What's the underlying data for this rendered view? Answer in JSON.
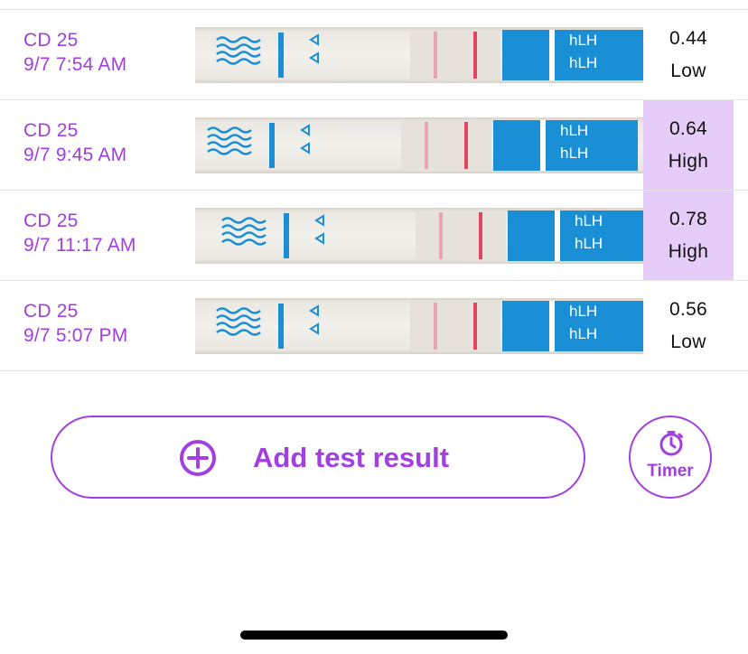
{
  "colors": {
    "accent": "#a23fe0",
    "high_highlight": "#e6ccf8",
    "strip_blue": "#1a8fd6",
    "test_line": "#e2455f"
  },
  "rows": [
    {
      "cycle_day": "CD 25",
      "datetime": "9/7 7:54 AM",
      "reading": "0.44",
      "level": "Low",
      "highlighted": false,
      "strip_label": "hLH",
      "strip_label_2": "hLH"
    },
    {
      "cycle_day": "CD 25",
      "datetime": "9/7 9:45 AM",
      "reading": "0.64",
      "level": "High",
      "highlighted": true,
      "strip_label": "hLH",
      "strip_label_2": "hLH"
    },
    {
      "cycle_day": "CD 25",
      "datetime": "9/7 11:17 AM",
      "reading": "0.78",
      "level": "High",
      "highlighted": true,
      "strip_label": "hLH",
      "strip_label_2": "hLH"
    },
    {
      "cycle_day": "CD 25",
      "datetime": "9/7 5:07 PM",
      "reading": "0.56",
      "level": "Low",
      "highlighted": false,
      "strip_label": "hLH",
      "strip_label_2": "hLH"
    }
  ],
  "add_button": {
    "label": "Add test result",
    "icon": "plus-circle-icon"
  },
  "timer_button": {
    "label": "Timer",
    "icon": "stopwatch-icon"
  }
}
